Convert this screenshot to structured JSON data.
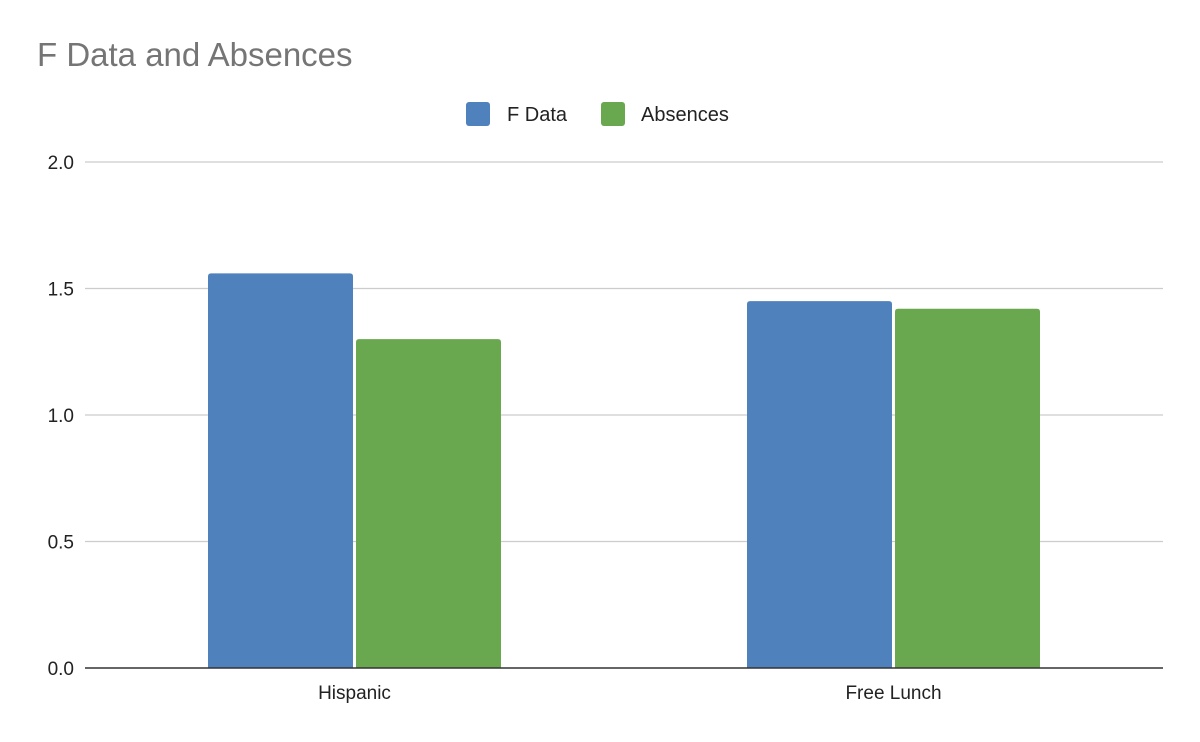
{
  "chart_data": {
    "type": "bar",
    "title": "F Data and Absences",
    "categories": [
      "Hispanic",
      "Free Lunch"
    ],
    "series": [
      {
        "name": "F Data",
        "values": [
          1.56,
          1.45
        ],
        "color": "#4f81bd"
      },
      {
        "name": "Absences",
        "values": [
          1.3,
          1.42
        ],
        "color": "#6aa84f"
      }
    ],
    "yticks": [
      "0.0",
      "0.5",
      "1.0",
      "1.5",
      "2.0"
    ],
    "ylim": [
      0,
      2
    ],
    "grid": true,
    "legend": "top-center",
    "colors": {
      "gridline": "#cccccc",
      "axis": "#333333"
    }
  }
}
